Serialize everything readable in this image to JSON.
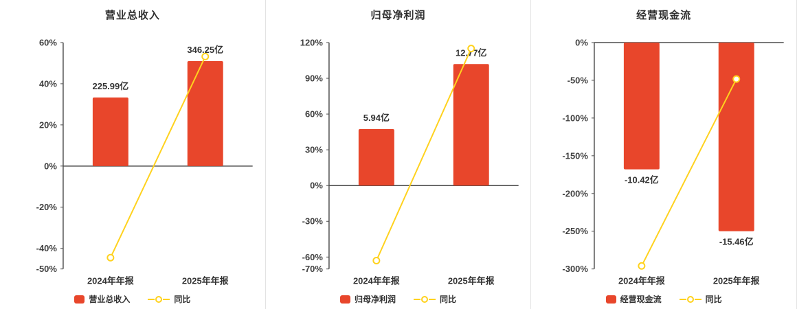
{
  "colors": {
    "bar": "#e8462b",
    "line": "#ffd21e",
    "axis": "#4d4d4d",
    "tick_text": "#404040",
    "value_text": "#333333",
    "marker_fill": "#ffffff",
    "divider": "#e3e3e3",
    "background": "#ffffff"
  },
  "chart_data": [
    {
      "type": "bar",
      "title": "营业总收入",
      "categories": [
        "2024年年报",
        "2025年年报"
      ],
      "series": [
        {
          "name": "营业总收入",
          "type": "bar",
          "values_label": [
            "225.99亿",
            "346.25亿"
          ],
          "axis_heights_pct": [
            33.3,
            51.0
          ]
        },
        {
          "name": "同比",
          "type": "line",
          "values_pct": [
            -44.5,
            53.2
          ]
        }
      ],
      "ylim": [
        -50,
        60
      ],
      "yticks": [
        60,
        40,
        20,
        0,
        -20,
        -40,
        -50
      ],
      "ytick_suffix": "%",
      "grid": false,
      "legend_position": "bottom"
    },
    {
      "type": "bar",
      "title": "归母净利润",
      "categories": [
        "2024年年报",
        "2025年年报"
      ],
      "series": [
        {
          "name": "归母净利润",
          "type": "bar",
          "values_label": [
            "5.94亿",
            "12.77亿"
          ],
          "axis_heights_pct": [
            47.4,
            102.0
          ]
        },
        {
          "name": "同比",
          "type": "line",
          "values_pct": [
            -63.0,
            115.0
          ]
        }
      ],
      "ylim": [
        -70,
        120
      ],
      "yticks": [
        120,
        90,
        60,
        30,
        0,
        -30,
        -60,
        -70
      ],
      "ytick_suffix": "%",
      "grid": false,
      "legend_position": "bottom"
    },
    {
      "type": "bar",
      "title": "经营现金流",
      "categories": [
        "2024年年报",
        "2025年年报"
      ],
      "series": [
        {
          "name": "经营现金流",
          "type": "bar",
          "values_label": [
            "-10.42亿",
            "-15.46亿"
          ],
          "axis_heights_pct": [
            -168.0,
            -250.0
          ]
        },
        {
          "name": "同比",
          "type": "line",
          "values_pct": [
            -296.0,
            -48.4
          ]
        }
      ],
      "ylim": [
        -300,
        0
      ],
      "yticks": [
        0,
        -50,
        -100,
        -150,
        -200,
        -250,
        -300
      ],
      "ytick_suffix": "%",
      "grid": false,
      "legend_position": "bottom"
    }
  ]
}
